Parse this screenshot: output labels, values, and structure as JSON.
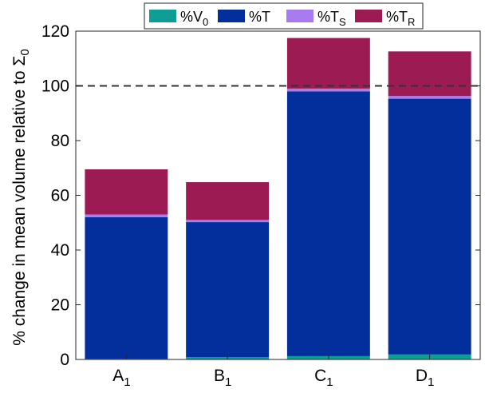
{
  "chart_data": {
    "type": "bar",
    "stacked": true,
    "title": "",
    "xlabel": "",
    "ylabel": "% change in mean volume relative to Σ0",
    "ylabel_parts": {
      "main": "% change in mean volume relative to Σ",
      "sub": "0"
    },
    "ylim": [
      0,
      120
    ],
    "yticks": [
      0,
      20,
      40,
      60,
      80,
      100,
      120
    ],
    "reference_line": {
      "y": 100,
      "style": "dashed"
    },
    "categories": [
      {
        "base": "A",
        "sub": "1"
      },
      {
        "base": "B",
        "sub": "1"
      },
      {
        "base": "C",
        "sub": "1"
      },
      {
        "base": "D",
        "sub": "1"
      }
    ],
    "series": [
      {
        "name": "%V0",
        "label_base": "%V",
        "label_sub": "0",
        "color": "#0e9e96",
        "values": [
          0.2,
          0.8,
          1.2,
          1.8
        ]
      },
      {
        "name": "%T",
        "label_base": "%T",
        "label_sub": "",
        "color": "#022f9c",
        "values": [
          51.8,
          49.4,
          96.8,
          93.5
        ]
      },
      {
        "name": "%TS",
        "label_base": "%T",
        "label_sub": "S",
        "color": "#a87cf0",
        "values": [
          1.0,
          0.8,
          1.0,
          1.0
        ]
      },
      {
        "name": "%TR",
        "label_base": "%T",
        "label_sub": "R",
        "color": "#9c1b52",
        "values": [
          16.5,
          13.8,
          18.5,
          16.3
        ]
      }
    ],
    "legend_position": "top",
    "grid": false
  }
}
